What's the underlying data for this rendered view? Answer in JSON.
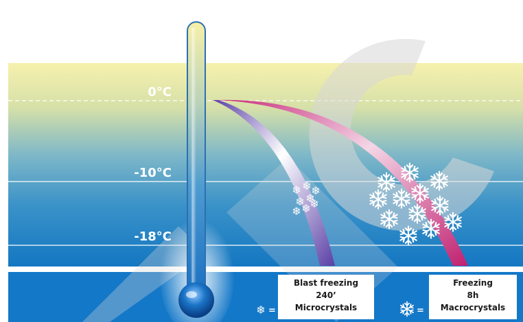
{
  "temperatures": {
    "zero": "0°C",
    "minus10": "-10°C",
    "minus18": "-18°C"
  },
  "legend": {
    "blast": {
      "line1": "Blast freezing",
      "line2": "240’",
      "line3": "Microcrystals",
      "equals": "="
    },
    "freezing": {
      "line1": "Freezing",
      "line2": "8h",
      "line3": "Macrocrystals",
      "equals": "="
    }
  },
  "colors": {
    "band_top": "#f4efa8",
    "band_bottom": "#0e79c4",
    "bottom_bar": "#1478c8",
    "blast_curve": "#6a4bb0",
    "freezing_curve": "#d0307f"
  },
  "icons": {
    "crystal": "snowflake-icon",
    "watermark": "logo-watermark"
  }
}
